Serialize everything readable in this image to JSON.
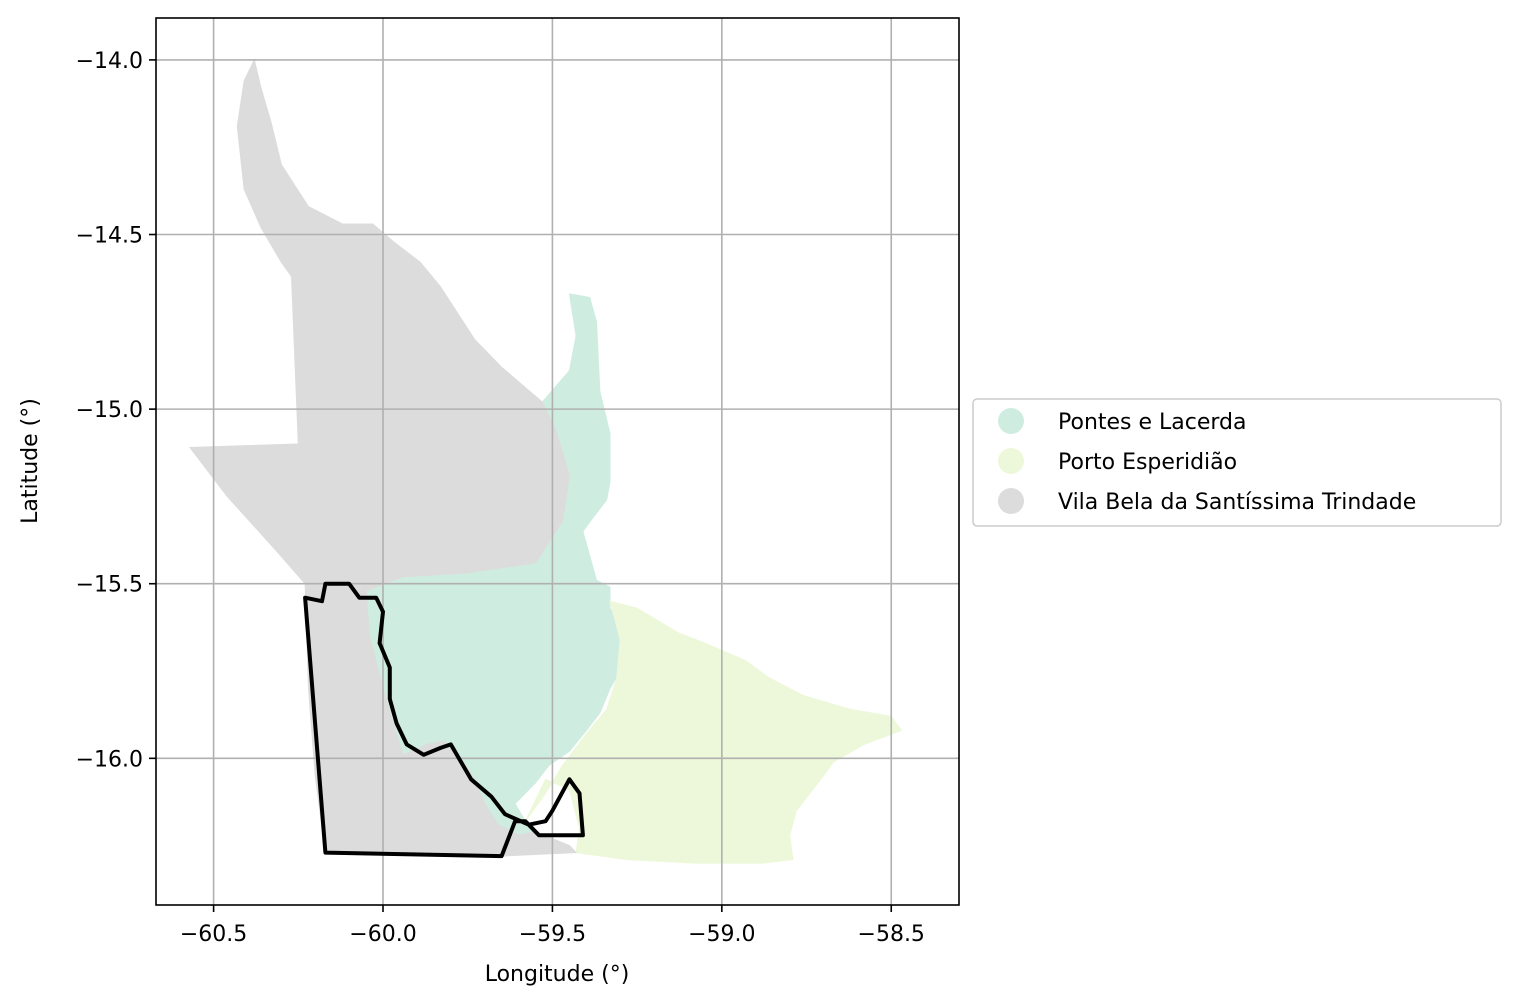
{
  "chart_data": {
    "type": "map",
    "xlabel": "Longitude (°)",
    "ylabel": "Latitude (°)",
    "xlim": [
      -60.67,
      -58.3
    ],
    "ylim": [
      -16.42,
      -13.88
    ],
    "xticks": [
      -60.5,
      -60.0,
      -59.5,
      -59.0,
      -58.5
    ],
    "yticks": [
      -14.0,
      -14.5,
      -15.0,
      -15.5,
      -16.0
    ],
    "xtick_labels": [
      "−60.5",
      "−60.0",
      "−59.5",
      "−59.0",
      "−58.5"
    ],
    "ytick_labels": [
      "−14.0",
      "−14.5",
      "−15.0",
      "−15.5",
      "−16.0"
    ],
    "grid": true,
    "legend_position": "center-right outside",
    "regions": [
      {
        "name": "Pontes e Lacerda",
        "color": "#cfece0",
        "polygon": [
          [
            -59.45,
            -14.67
          ],
          [
            -59.39,
            -14.68
          ],
          [
            -59.37,
            -14.75
          ],
          [
            -59.36,
            -14.95
          ],
          [
            -59.33,
            -15.07
          ],
          [
            -59.33,
            -15.21
          ],
          [
            -59.34,
            -15.26
          ],
          [
            -59.38,
            -15.31
          ],
          [
            -59.41,
            -15.35
          ],
          [
            -59.39,
            -15.42
          ],
          [
            -59.37,
            -15.49
          ],
          [
            -59.33,
            -15.51
          ],
          [
            -59.33,
            -15.57
          ],
          [
            -59.29,
            -15.63
          ],
          [
            -59.28,
            -15.67
          ],
          [
            -59.3,
            -15.75
          ],
          [
            -59.33,
            -15.8
          ],
          [
            -59.36,
            -15.87
          ],
          [
            -59.4,
            -15.92
          ],
          [
            -59.45,
            -15.98
          ],
          [
            -59.51,
            -16.02
          ],
          [
            -59.55,
            -16.07
          ],
          [
            -59.61,
            -16.13
          ],
          [
            -59.58,
            -16.18
          ],
          [
            -59.55,
            -16.21
          ],
          [
            -59.6,
            -16.22
          ],
          [
            -59.66,
            -16.19
          ],
          [
            -59.7,
            -16.13
          ],
          [
            -59.73,
            -16.06
          ],
          [
            -59.77,
            -16.0
          ],
          [
            -59.82,
            -15.95
          ],
          [
            -59.87,
            -15.96
          ],
          [
            -59.94,
            -15.99
          ],
          [
            -59.97,
            -15.9
          ],
          [
            -60.0,
            -15.8
          ],
          [
            -60.04,
            -15.65
          ],
          [
            -60.05,
            -15.52
          ],
          [
            -59.94,
            -15.48
          ],
          [
            -59.76,
            -15.47
          ],
          [
            -59.55,
            -15.44
          ],
          [
            -59.47,
            -15.32
          ],
          [
            -59.45,
            -15.19
          ],
          [
            -59.49,
            -15.06
          ],
          [
            -59.53,
            -14.98
          ],
          [
            -59.45,
            -14.89
          ],
          [
            -59.43,
            -14.79
          ]
        ]
      },
      {
        "name": "Porto Esperidião",
        "color": "#edf8da",
        "polygon": [
          [
            -59.33,
            -15.55
          ],
          [
            -59.25,
            -15.57
          ],
          [
            -59.13,
            -15.64
          ],
          [
            -59.05,
            -15.67
          ],
          [
            -58.93,
            -15.72
          ],
          [
            -58.86,
            -15.77
          ],
          [
            -58.76,
            -15.82
          ],
          [
            -58.69,
            -15.84
          ],
          [
            -58.62,
            -15.86
          ],
          [
            -58.5,
            -15.88
          ],
          [
            -58.47,
            -15.92
          ],
          [
            -58.58,
            -15.96
          ],
          [
            -58.67,
            -16.01
          ],
          [
            -58.7,
            -16.05
          ],
          [
            -58.74,
            -16.1
          ],
          [
            -58.78,
            -16.15
          ],
          [
            -58.8,
            -16.22
          ],
          [
            -58.79,
            -16.29
          ],
          [
            -58.88,
            -16.3
          ],
          [
            -59.08,
            -16.3
          ],
          [
            -59.28,
            -16.29
          ],
          [
            -59.43,
            -16.27
          ],
          [
            -59.42,
            -16.2
          ],
          [
            -59.45,
            -16.09
          ],
          [
            -59.52,
            -16.06
          ],
          [
            -59.55,
            -16.12
          ],
          [
            -59.58,
            -16.18
          ],
          [
            -59.52,
            -16.1
          ],
          [
            -59.47,
            -16.02
          ],
          [
            -59.4,
            -15.93
          ],
          [
            -59.34,
            -15.86
          ],
          [
            -59.31,
            -15.77
          ],
          [
            -59.3,
            -15.66
          ]
        ]
      },
      {
        "name": "Vila Bela da Santíssima Trindade",
        "color": "#dcdcdc",
        "polygon": [
          [
            -60.38,
            -14.0
          ],
          [
            -60.36,
            -14.08
          ],
          [
            -60.33,
            -14.18
          ],
          [
            -60.3,
            -14.3
          ],
          [
            -60.22,
            -14.42
          ],
          [
            -60.12,
            -14.47
          ],
          [
            -60.03,
            -14.47
          ],
          [
            -59.97,
            -14.52
          ],
          [
            -59.89,
            -14.58
          ],
          [
            -59.83,
            -14.65
          ],
          [
            -59.73,
            -14.8
          ],
          [
            -59.65,
            -14.88
          ],
          [
            -59.53,
            -14.98
          ],
          [
            -59.49,
            -15.06
          ],
          [
            -59.45,
            -15.19
          ],
          [
            -59.47,
            -15.32
          ],
          [
            -59.55,
            -15.44
          ],
          [
            -59.76,
            -15.47
          ],
          [
            -59.94,
            -15.48
          ],
          [
            -60.05,
            -15.52
          ],
          [
            -60.04,
            -15.65
          ],
          [
            -60.0,
            -15.8
          ],
          [
            -59.97,
            -15.9
          ],
          [
            -59.94,
            -15.99
          ],
          [
            -59.87,
            -15.96
          ],
          [
            -59.82,
            -15.95
          ],
          [
            -59.77,
            -16.0
          ],
          [
            -59.73,
            -16.06
          ],
          [
            -59.7,
            -16.13
          ],
          [
            -59.66,
            -16.19
          ],
          [
            -59.6,
            -16.22
          ],
          [
            -59.55,
            -16.21
          ],
          [
            -59.45,
            -16.25
          ],
          [
            -59.43,
            -16.27
          ],
          [
            -59.65,
            -16.28
          ],
          [
            -59.9,
            -16.27
          ],
          [
            -60.17,
            -16.27
          ],
          [
            -60.2,
            -16.05
          ],
          [
            -60.22,
            -15.8
          ],
          [
            -60.23,
            -15.5
          ],
          [
            -60.32,
            -15.4
          ],
          [
            -60.46,
            -15.25
          ],
          [
            -60.57,
            -15.11
          ],
          [
            -60.25,
            -15.1
          ],
          [
            -60.27,
            -14.62
          ],
          [
            -60.3,
            -14.58
          ],
          [
            -60.36,
            -14.48
          ],
          [
            -60.41,
            -14.37
          ],
          [
            -60.43,
            -14.19
          ],
          [
            -60.41,
            -14.06
          ]
        ]
      }
    ],
    "outline": {
      "color": "#000000",
      "polygon": [
        [
          -60.23,
          -15.54
        ],
        [
          -60.18,
          -15.55
        ],
        [
          -60.17,
          -15.5
        ],
        [
          -60.1,
          -15.5
        ],
        [
          -60.07,
          -15.54
        ],
        [
          -60.02,
          -15.54
        ],
        [
          -60.0,
          -15.58
        ],
        [
          -60.01,
          -15.67
        ],
        [
          -59.98,
          -15.74
        ],
        [
          -59.98,
          -15.83
        ],
        [
          -59.96,
          -15.9
        ],
        [
          -59.93,
          -15.96
        ],
        [
          -59.88,
          -15.99
        ],
        [
          -59.83,
          -15.97
        ],
        [
          -59.8,
          -15.96
        ],
        [
          -59.77,
          -16.01
        ],
        [
          -59.74,
          -16.06
        ],
        [
          -59.68,
          -16.11
        ],
        [
          -59.64,
          -16.16
        ],
        [
          -59.57,
          -16.19
        ],
        [
          -59.52,
          -16.18
        ],
        [
          -59.5,
          -16.15
        ],
        [
          -59.45,
          -16.06
        ],
        [
          -59.42,
          -16.1
        ],
        [
          -59.41,
          -16.22
        ],
        [
          -59.47,
          -16.22
        ],
        [
          -59.54,
          -16.22
        ],
        [
          -59.58,
          -16.18
        ],
        [
          -59.61,
          -16.18
        ],
        [
          -59.65,
          -16.28
        ],
        [
          -60.17,
          -16.27
        ]
      ]
    }
  },
  "legend": {
    "items": [
      {
        "label": "Pontes e Lacerda",
        "color": "#cfece0"
      },
      {
        "label": "Porto Esperidião",
        "color": "#edf8da"
      },
      {
        "label": "Vila Bela da Santíssima Trindade",
        "color": "#dcdcdc"
      }
    ]
  }
}
